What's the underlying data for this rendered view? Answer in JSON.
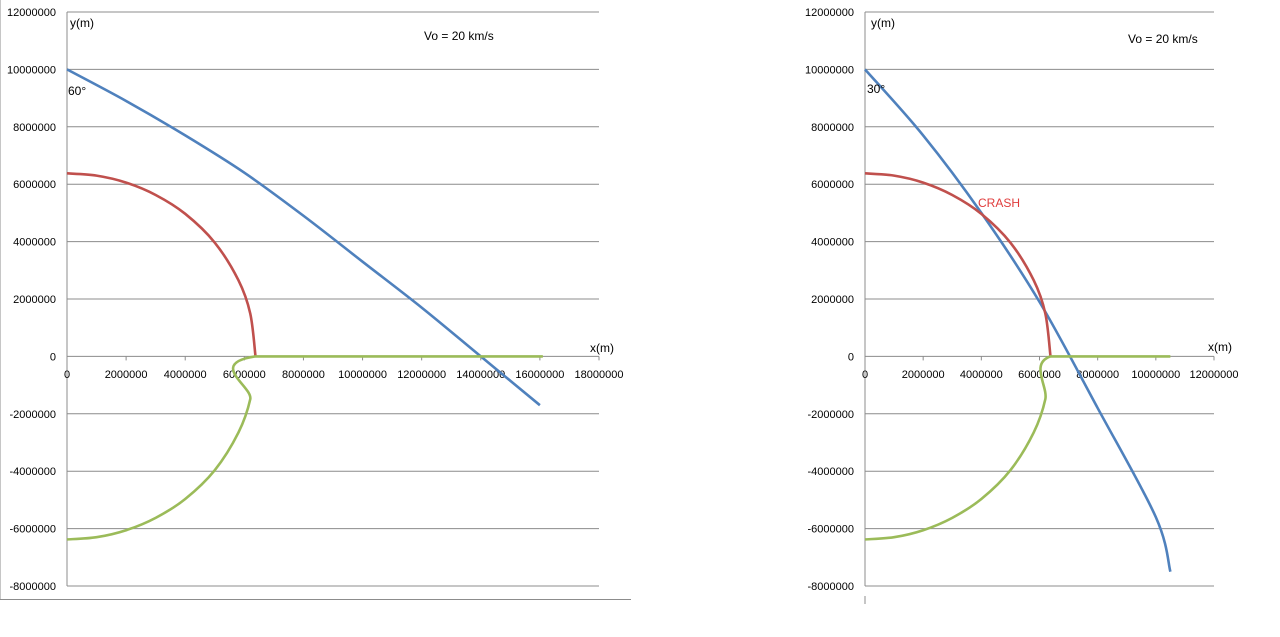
{
  "chart_data": [
    {
      "type": "line",
      "ylabel": "y(m)",
      "xlabel": "x(m)",
      "annotation": "Vo = 20 km/s",
      "angle_label": "60°",
      "xlim": [
        0,
        18000000
      ],
      "ylim": [
        -8000000,
        12000000
      ],
      "x_ticks": [
        "0",
        "2000000",
        "4000000",
        "6000000",
        "8000000",
        "10000000",
        "12000000",
        "14000000",
        "16000000",
        "18000000"
      ],
      "y_ticks": [
        "12000000",
        "10000000",
        "8000000",
        "6000000",
        "4000000",
        "2000000",
        "0",
        "-2000000",
        "-4000000",
        "-6000000",
        "-8000000"
      ],
      "grid": true,
      "series": [
        {
          "color": "#4f81bd",
          "x": [
            0,
            2000000,
            4000000,
            6000000,
            8000000,
            10000000,
            12000000,
            14000000,
            16000000
          ],
          "y": [
            10000000,
            8900000,
            7700000,
            6400000,
            4900000,
            3300000,
            1700000,
            0,
            -1700000
          ]
        },
        {
          "color": "#c0504d",
          "x": [
            0,
            1000000,
            2000000,
            3000000,
            4000000,
            5000000,
            5800000,
            6200000,
            6378000
          ],
          "y": [
            6378000,
            6299000,
            6056000,
            5625000,
            4968000,
            3964000,
            2654000,
            1494000,
            0
          ]
        },
        {
          "color": "#9bbb59",
          "x": [
            0,
            1000000,
            2000000,
            3000000,
            4000000,
            5000000,
            5800000,
            6200000,
            6378000,
            16100000
          ],
          "y": [
            -6378000,
            -6299000,
            -6056000,
            -5625000,
            -4968000,
            -3964000,
            -2654000,
            -1494000,
            0,
            0
          ]
        }
      ]
    },
    {
      "type": "line",
      "ylabel": "y(m)",
      "xlabel": "x(m)",
      "annotation": "Vo = 20 km/s",
      "angle_label": "30°",
      "crash_label": "CRASH",
      "xlim": [
        0,
        12000000
      ],
      "ylim": [
        -8000000,
        12000000
      ],
      "x_ticks": [
        "0",
        "2000000",
        "4000000",
        "6000000",
        "8000000",
        "10000000",
        "12000000"
      ],
      "y_ticks": [
        "12000000",
        "10000000",
        "8000000",
        "6000000",
        "4000000",
        "2000000",
        "0",
        "-2000000",
        "-4000000",
        "-6000000",
        "-8000000"
      ],
      "grid": true,
      "series": [
        {
          "color": "#4f81bd",
          "x": [
            0,
            2000000,
            4000000,
            6000000,
            8000000,
            10000000,
            10500000
          ],
          "y": [
            10000000,
            7700000,
            5000000,
            1900000,
            -1800000,
            -5600000,
            -7500000
          ]
        },
        {
          "color": "#c0504d",
          "x": [
            0,
            1000000,
            2000000,
            3000000,
            4000000,
            5000000,
            5800000,
            6200000,
            6378000
          ],
          "y": [
            6378000,
            6299000,
            6056000,
            5625000,
            4968000,
            3964000,
            2654000,
            1494000,
            0
          ]
        },
        {
          "color": "#9bbb59",
          "x": [
            0,
            1000000,
            2000000,
            3000000,
            4000000,
            5000000,
            5800000,
            6200000,
            6378000,
            10500000
          ],
          "y": [
            -6378000,
            -6299000,
            -6056000,
            -5625000,
            -4968000,
            -3964000,
            -2654000,
            -1494000,
            0,
            0
          ]
        }
      ]
    }
  ]
}
